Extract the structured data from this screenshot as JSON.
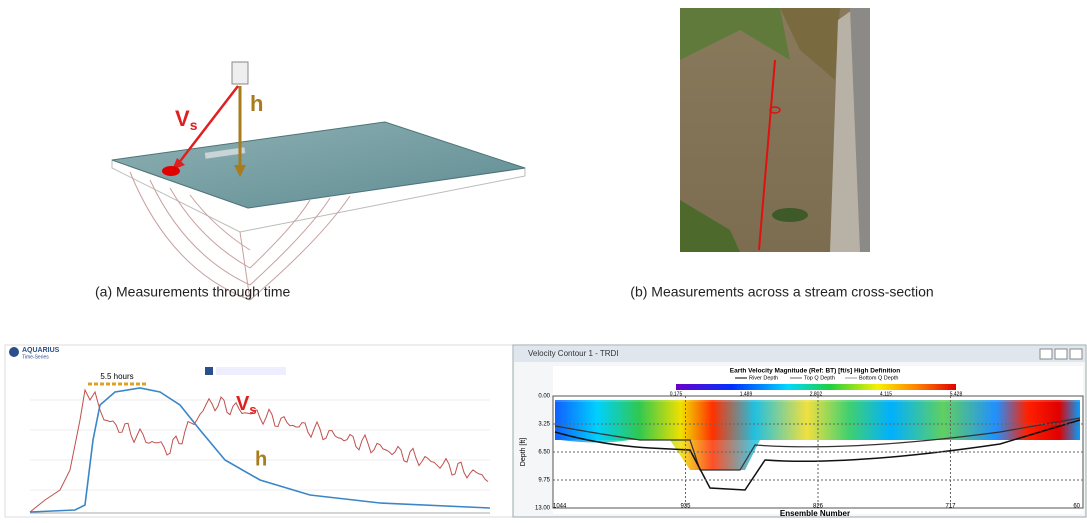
{
  "panel_a": {
    "vs": "V",
    "vs_sub": "s",
    "h": "h",
    "caption": "(a)   Measurements through time"
  },
  "panel_b": {
    "caption": "(b) Measurements across a stream cross-section"
  },
  "panel_c": {
    "app_title": "AQUARIUS",
    "app_subtitle": "Time-Series",
    "annotation": "5.5 hours",
    "vs": "V",
    "vs_sub": "s",
    "h": "h"
  },
  "panel_d": {
    "window_title": "Velocity Contour 1 - TRDI",
    "chart_title": "Earth Velocity Magnitude (Ref: BT) [ft/s] High Definition",
    "legend": [
      "River Depth",
      "Top Q Depth",
      "Bottom Q Depth"
    ],
    "colorbar_ticks": [
      "0.175",
      "1.489",
      "2.802",
      "4.115",
      "5.428"
    ],
    "y_label": "Depth [ft]",
    "y_ticks": [
      "0.00",
      "3.25",
      "6.50",
      "9.75",
      "13.00"
    ],
    "x_label": "Ensemble Number",
    "x_ticks": [
      "1044",
      "935",
      "826",
      "717",
      "60"
    ]
  }
}
